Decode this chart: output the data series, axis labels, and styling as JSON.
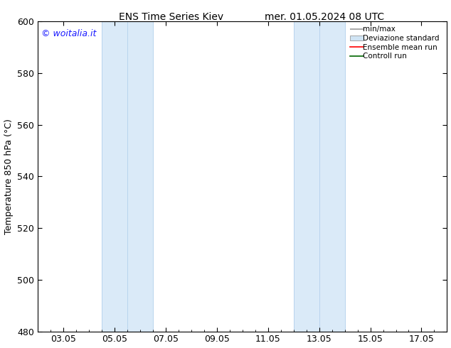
{
  "title_left": "ENS Time Series Kiev",
  "title_right": "mer. 01.05.2024 08 UTC",
  "ylabel": "Temperature 850 hPa (°C)",
  "xtick_labels": [
    "03.05",
    "05.05",
    "07.05",
    "09.05",
    "11.05",
    "13.05",
    "15.05",
    "17.05"
  ],
  "xtick_positions": [
    2,
    4,
    6,
    8,
    10,
    12,
    14,
    16
  ],
  "ylim": [
    480,
    600
  ],
  "ytick_positions": [
    480,
    500,
    520,
    540,
    560,
    580,
    600
  ],
  "ytick_labels": [
    "480",
    "500",
    "520",
    "540",
    "560",
    "580",
    "600"
  ],
  "shaded_bands": [
    {
      "x_start": 3.5,
      "x_mid": 4.5,
      "x_end": 5.5
    },
    {
      "x_start": 11.0,
      "x_mid": 12.0,
      "x_end": 13.0
    }
  ],
  "shaded_color": "#daeaf8",
  "shaded_line_color": "#b8d4ee",
  "watermark_text": "© woitalia.it",
  "watermark_color": "#1a1aff",
  "background_color": "#ffffff",
  "border_color": "#000000",
  "font_size": 9,
  "title_font_size": 10,
  "watermark_fontsize": 9,
  "legend_labels": [
    "min/max",
    "Deviazione standard",
    "Ensemble mean run",
    "Controll run"
  ],
  "legend_line_color_1": "#999999",
  "legend_fill_color": "#d0e4f4",
  "legend_line_color_red": "#ff0000",
  "legend_line_color_green": "#006600",
  "xlim": [
    1.0,
    17.0
  ]
}
